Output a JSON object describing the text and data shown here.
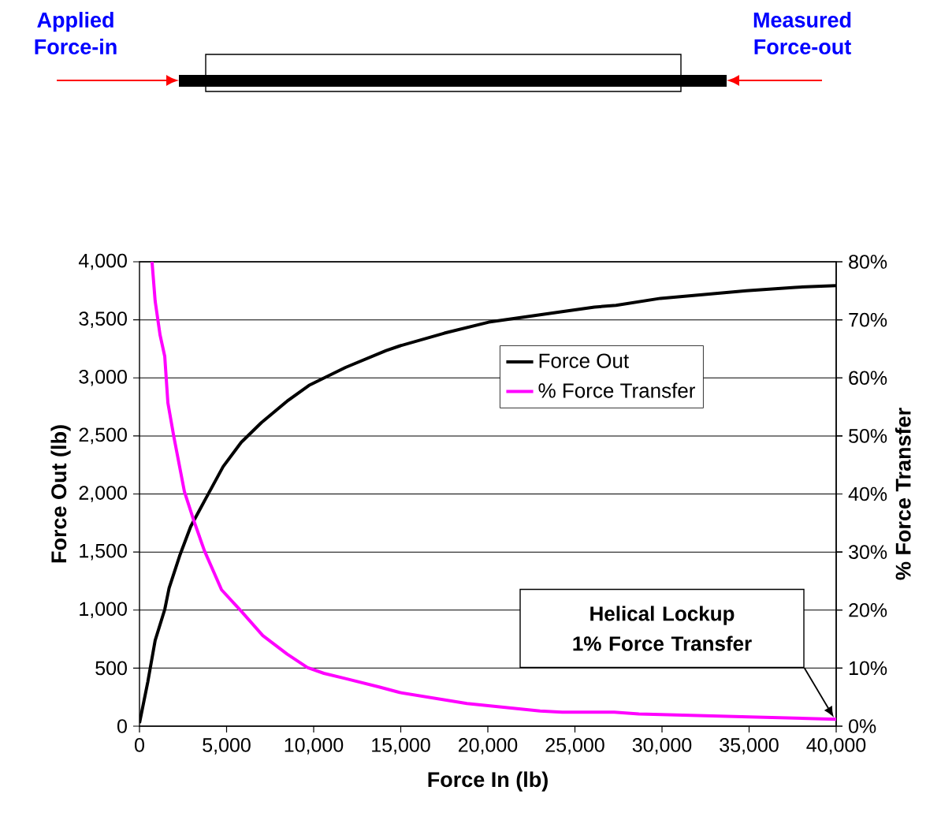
{
  "chart_data": {
    "type": "line",
    "xlabel": "Force In (lb)",
    "ylabel": "Force Out (lb)",
    "y2label": "% Force Transfer",
    "series": [
      {
        "name": "Force Out",
        "color": "#000000",
        "x": [
          0,
          475,
          900,
          1450,
          1700,
          2300,
          2940,
          3730,
          4800,
          5840,
          7000,
          8480,
          9730,
          11830,
          14160,
          14940,
          17500,
          20050,
          24270,
          26120,
          27360,
          29910,
          34840,
          37650,
          40000
        ],
        "values": [
          27,
          380,
          740,
          1005,
          1190,
          1465,
          1720,
          1940,
          2235,
          2445,
          2615,
          2800,
          2935,
          3090,
          3235,
          3275,
          3385,
          3480,
          3570,
          3610,
          3625,
          3685,
          3750,
          3780,
          3795
        ]
      },
      {
        "name": "% Force Transfer",
        "color": "#ff00ff",
        "axis": "y2",
        "x": [
          720,
          900,
          1180,
          1450,
          1630,
          1970,
          2580,
          3120,
          3730,
          4710,
          5840,
          7080,
          8480,
          9640,
          10590,
          11830,
          13710,
          14940,
          18800,
          23000,
          24270,
          27260,
          28670,
          35000,
          40000
        ],
        "values": [
          80,
          73.2,
          67.4,
          63.7,
          55.7,
          49.9,
          40.4,
          35.4,
          30.2,
          23.5,
          19.8,
          15.6,
          12.4,
          10.1,
          9.1,
          8.2,
          6.8,
          5.8,
          3.9,
          2.6,
          2.4,
          2.4,
          2.1,
          1.6,
          1.2
        ]
      }
    ],
    "xlim": [
      0,
      40000
    ],
    "xticks": [
      0,
      {
        "value": 5000,
        "label": "5,000"
      },
      {
        "value": 10000,
        "label": "10,000"
      },
      {
        "value": 15000,
        "label": "15,000"
      },
      {
        "value": 20000,
        "label": "20,000"
      },
      {
        "value": 25000,
        "label": "25,000"
      },
      {
        "value": 30000,
        "label": "30,000"
      },
      {
        "value": 35000,
        "label": "35,000"
      },
      {
        "value": 40000,
        "label": "40,000"
      }
    ],
    "ylim": [
      0,
      4000
    ],
    "yticks": [
      0,
      500,
      {
        "value": 1000,
        "label": "1,000"
      },
      {
        "value": 1500,
        "label": "1,500"
      },
      {
        "value": 2000,
        "label": "2,000"
      },
      {
        "value": 2500,
        "label": "2,500"
      },
      {
        "value": 3000,
        "label": "3,000"
      },
      {
        "value": 3500,
        "label": "3,500"
      },
      {
        "value": 4000,
        "label": "4,000"
      }
    ],
    "y2lim": [
      0,
      80
    ],
    "y2ticks": [
      {
        "value": 0,
        "label": "0%"
      },
      {
        "value": 10,
        "label": "10%"
      },
      {
        "value": 20,
        "label": "20%"
      },
      {
        "value": 30,
        "label": "30%"
      },
      {
        "value": 40,
        "label": "40%"
      },
      {
        "value": 50,
        "label": "50%"
      },
      {
        "value": 60,
        "label": "60%"
      },
      {
        "value": 70,
        "label": "70%"
      },
      {
        "value": 80,
        "label": "80%"
      }
    ],
    "grid": "y",
    "legend": "top right",
    "line_style": "solid",
    "marker": "none",
    "annotations": [
      "Helical Lockup 1% Force Transfer",
      "Applied Force-in",
      "Measured Force-out"
    ]
  }
}
